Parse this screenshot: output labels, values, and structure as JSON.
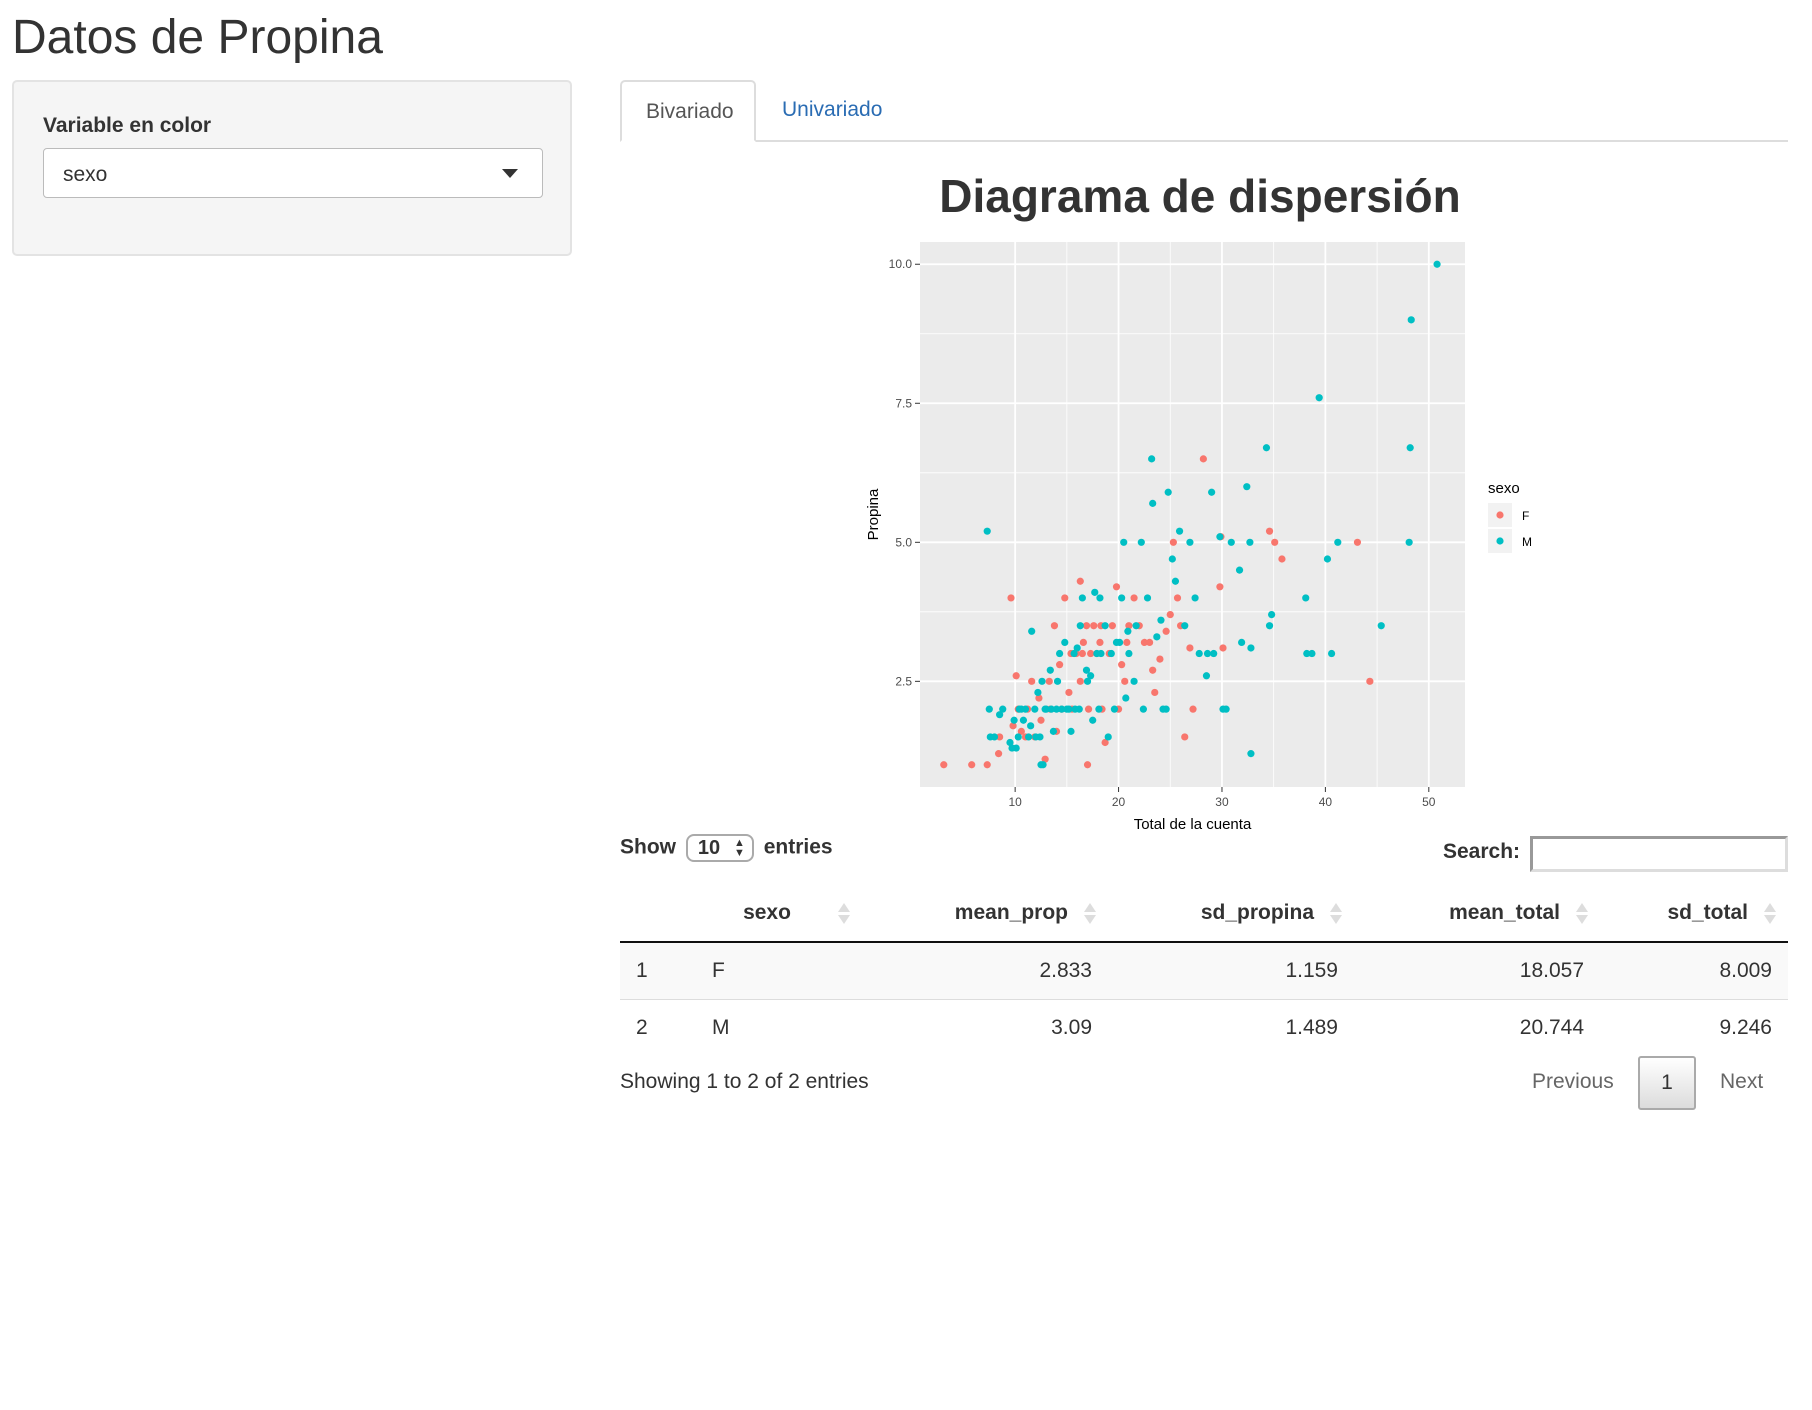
{
  "app": {
    "title": "Datos de Propina"
  },
  "sidebar": {
    "control_label": "Variable en color",
    "selected_value": "sexo"
  },
  "tabs": [
    {
      "label": "Bivariado",
      "active": true
    },
    {
      "label": "Univariado",
      "active": false
    }
  ],
  "chart_data": {
    "type": "scatter",
    "title": "Diagrama de dispersión",
    "xlabel": "Total de la cuenta",
    "ylabel": "Propina",
    "xlim": [
      0.8,
      53.5
    ],
    "ylim": [
      0.6,
      10.4
    ],
    "xticks": [
      10,
      20,
      30,
      40,
      50
    ],
    "yticks": [
      2.5,
      5.0,
      7.5,
      10.0
    ],
    "ytick_labels": [
      "2.5",
      "5.0",
      "7.5",
      "10.0"
    ],
    "grid": true,
    "panel_background": "#ebebeb",
    "legend": {
      "title": "sexo",
      "position": "right"
    },
    "series": [
      {
        "name": "F",
        "color": "#f8766d",
        "points": [
          [
            3.1,
            1.0
          ],
          [
            5.8,
            1.0
          ],
          [
            7.3,
            1.0
          ],
          [
            8.5,
            1.5
          ],
          [
            8.4,
            1.2
          ],
          [
            9.6,
            4.0
          ],
          [
            9.8,
            1.7
          ],
          [
            10.1,
            2.6
          ],
          [
            10.3,
            2.0
          ],
          [
            10.6,
            1.6
          ],
          [
            11.0,
            1.5
          ],
          [
            11.2,
            2.0
          ],
          [
            11.6,
            2.5
          ],
          [
            11.9,
            1.5
          ],
          [
            12.3,
            2.2
          ],
          [
            12.5,
            1.8
          ],
          [
            12.9,
            1.1
          ],
          [
            13.3,
            2.5
          ],
          [
            13.4,
            2.0
          ],
          [
            13.8,
            3.5
          ],
          [
            14.0,
            1.6
          ],
          [
            14.3,
            2.8
          ],
          [
            14.5,
            2.0
          ],
          [
            14.8,
            4.0
          ],
          [
            15.2,
            2.3
          ],
          [
            15.4,
            3.0
          ],
          [
            15.5,
            2.0
          ],
          [
            15.9,
            3.0
          ],
          [
            16.3,
            2.5
          ],
          [
            16.5,
            3.0
          ],
          [
            16.3,
            4.3
          ],
          [
            16.6,
            3.2
          ],
          [
            16.9,
            3.5
          ],
          [
            17.0,
            1.0
          ],
          [
            17.1,
            2.0
          ],
          [
            17.3,
            3.0
          ],
          [
            17.6,
            3.5
          ],
          [
            17.9,
            3.0
          ],
          [
            18.2,
            3.2
          ],
          [
            18.3,
            3.5
          ],
          [
            18.4,
            2.0
          ],
          [
            18.7,
            1.4
          ],
          [
            19.1,
            3.0
          ],
          [
            19.4,
            3.5
          ],
          [
            19.8,
            4.2
          ],
          [
            20.0,
            2.0
          ],
          [
            20.3,
            2.8
          ],
          [
            20.6,
            2.5
          ],
          [
            20.8,
            3.2
          ],
          [
            21.0,
            3.5
          ],
          [
            21.5,
            4.0
          ],
          [
            22.0,
            3.5
          ],
          [
            22.5,
            3.2
          ],
          [
            23.0,
            3.2
          ],
          [
            23.3,
            2.7
          ],
          [
            23.5,
            2.3
          ],
          [
            24.0,
            2.9
          ],
          [
            24.6,
            3.4
          ],
          [
            25.0,
            3.7
          ],
          [
            25.3,
            5.0
          ],
          [
            25.7,
            4.0
          ],
          [
            26.0,
            3.5
          ],
          [
            26.4,
            1.5
          ],
          [
            26.9,
            3.1
          ],
          [
            27.2,
            2.0
          ],
          [
            28.2,
            6.5
          ],
          [
            29.8,
            4.2
          ],
          [
            29.9,
            5.1
          ],
          [
            30.1,
            3.1
          ],
          [
            34.6,
            5.2
          ],
          [
            35.1,
            5.0
          ],
          [
            35.8,
            4.7
          ],
          [
            43.1,
            5.0
          ],
          [
            44.3,
            2.5
          ]
        ]
      },
      {
        "name": "M",
        "color": "#00bfc4",
        "points": [
          [
            7.3,
            5.2
          ],
          [
            7.5,
            2.0
          ],
          [
            7.6,
            1.5
          ],
          [
            8.0,
            1.5
          ],
          [
            8.5,
            1.9
          ],
          [
            8.8,
            2.0
          ],
          [
            9.5,
            1.4
          ],
          [
            9.7,
            1.3
          ],
          [
            9.9,
            1.8
          ],
          [
            10.1,
            1.3
          ],
          [
            10.3,
            1.5
          ],
          [
            10.4,
            2.0
          ],
          [
            10.6,
            2.0
          ],
          [
            10.8,
            1.8
          ],
          [
            11.0,
            2.0
          ],
          [
            11.3,
            1.5
          ],
          [
            11.5,
            1.7
          ],
          [
            11.6,
            3.4
          ],
          [
            11.9,
            2.0
          ],
          [
            12.0,
            1.5
          ],
          [
            12.2,
            2.3
          ],
          [
            12.4,
            1.5
          ],
          [
            12.6,
            2.5
          ],
          [
            12.7,
            1.0
          ],
          [
            12.9,
            2.0
          ],
          [
            13.0,
            2.0
          ],
          [
            13.4,
            2.7
          ],
          [
            13.5,
            2.0
          ],
          [
            13.7,
            1.6
          ],
          [
            14.0,
            2.0
          ],
          [
            14.1,
            2.5
          ],
          [
            14.3,
            3.0
          ],
          [
            14.5,
            2.0
          ],
          [
            14.8,
            3.2
          ],
          [
            15.0,
            2.0
          ],
          [
            15.2,
            2.0
          ],
          [
            15.4,
            1.6
          ],
          [
            15.7,
            3.0
          ],
          [
            15.8,
            2.0
          ],
          [
            16.0,
            3.1
          ],
          [
            16.2,
            2.0
          ],
          [
            16.3,
            3.5
          ],
          [
            16.5,
            4.0
          ],
          [
            16.9,
            2.7
          ],
          [
            17.0,
            2.5
          ],
          [
            17.3,
            2.6
          ],
          [
            17.5,
            1.8
          ],
          [
            17.7,
            4.1
          ],
          [
            17.9,
            3.0
          ],
          [
            18.1,
            2.0
          ],
          [
            18.2,
            4.0
          ],
          [
            18.3,
            3.0
          ],
          [
            18.7,
            3.5
          ],
          [
            19.0,
            1.5
          ],
          [
            19.3,
            3.0
          ],
          [
            19.6,
            2.0
          ],
          [
            19.8,
            3.2
          ],
          [
            20.1,
            3.2
          ],
          [
            20.3,
            4.0
          ],
          [
            20.5,
            5.0
          ],
          [
            20.7,
            2.2
          ],
          [
            20.9,
            3.4
          ],
          [
            21.0,
            3.0
          ],
          [
            21.5,
            2.5
          ],
          [
            21.7,
            3.5
          ],
          [
            22.2,
            5.0
          ],
          [
            22.4,
            2.0
          ],
          [
            22.8,
            4.0
          ],
          [
            23.2,
            6.5
          ],
          [
            23.3,
            5.7
          ],
          [
            23.7,
            3.3
          ],
          [
            24.1,
            3.6
          ],
          [
            24.6,
            2.0
          ],
          [
            24.8,
            5.9
          ],
          [
            25.2,
            4.7
          ],
          [
            25.5,
            4.3
          ],
          [
            25.9,
            5.2
          ],
          [
            26.4,
            3.5
          ],
          [
            26.9,
            5.0
          ],
          [
            27.4,
            4.0
          ],
          [
            27.8,
            3.0
          ],
          [
            28.5,
            2.6
          ],
          [
            28.6,
            3.0
          ],
          [
            29.0,
            5.9
          ],
          [
            29.2,
            3.0
          ],
          [
            29.8,
            5.1
          ],
          [
            30.1,
            2.0
          ],
          [
            30.4,
            2.0
          ],
          [
            30.9,
            5.0
          ],
          [
            31.7,
            4.5
          ],
          [
            31.9,
            3.2
          ],
          [
            32.4,
            6.0
          ],
          [
            32.7,
            5.0
          ],
          [
            32.8,
            3.1
          ],
          [
            34.3,
            6.7
          ],
          [
            34.6,
            3.5
          ],
          [
            34.8,
            3.7
          ],
          [
            38.1,
            4.0
          ],
          [
            38.2,
            3.0
          ],
          [
            38.7,
            3.0
          ],
          [
            39.4,
            7.6
          ],
          [
            40.2,
            4.7
          ],
          [
            40.6,
            3.0
          ],
          [
            41.2,
            5.0
          ],
          [
            45.4,
            3.5
          ],
          [
            48.1,
            5.0
          ],
          [
            48.2,
            6.7
          ],
          [
            48.3,
            9.0
          ],
          [
            50.8,
            10.0
          ],
          [
            32.8,
            1.2
          ],
          [
            12.5,
            1.0
          ],
          [
            24.3,
            2.0
          ]
        ]
      }
    ]
  },
  "datatable": {
    "length_label_prefix": "Show",
    "length_value": "10",
    "length_label_suffix": "entries",
    "search_label": "Search:",
    "columns": [
      "",
      "sexo",
      "mean_prop",
      "sd_propina",
      "mean_total",
      "sd_total"
    ],
    "rows": [
      [
        "1",
        "F",
        "2.833",
        "1.159",
        "18.057",
        "8.009"
      ],
      [
        "2",
        "M",
        "3.09",
        "1.489",
        "20.744",
        "9.246"
      ]
    ],
    "info": "Showing 1 to 2 of 2 entries",
    "pagination": {
      "previous": "Previous",
      "current": "1",
      "next": "Next"
    }
  }
}
